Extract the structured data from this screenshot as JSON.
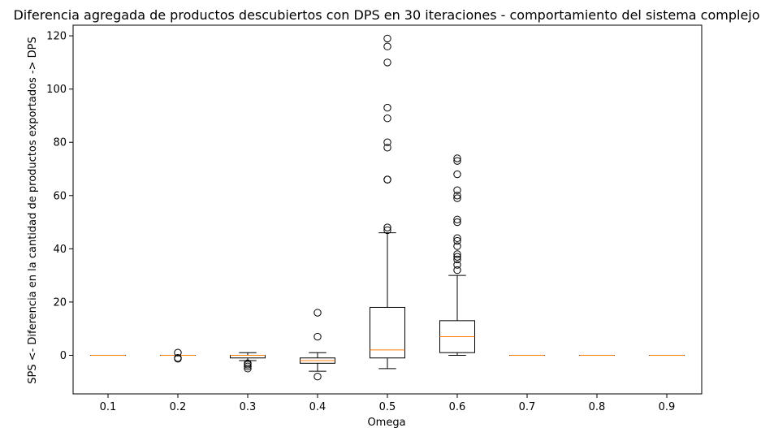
{
  "chart_data": {
    "type": "boxplot",
    "title": "Diferencia agregada de productos descubiertos con DPS en 30 iteraciones - comportamiento del sistema complejo",
    "xlabel": "Omega",
    "ylabel": "SPS <- Diferencia en la cantidad de productos exportados -> DPS",
    "ylim": [
      -14.5,
      124
    ],
    "yticks": [
      0,
      20,
      40,
      60,
      80,
      100,
      120
    ],
    "grid": false,
    "colors": {
      "box": "#000000",
      "median": "#ff7f0e",
      "background": "#ffffff"
    },
    "categories": [
      "0.1",
      "0.2",
      "0.3",
      "0.4",
      "0.5",
      "0.6",
      "0.7",
      "0.8",
      "0.9"
    ],
    "boxes": [
      {
        "category": "0.1",
        "whisker_low": 0,
        "q1": 0,
        "median": 0,
        "q3": 0,
        "whisker_high": 0,
        "fliers": []
      },
      {
        "category": "0.2",
        "whisker_low": 0,
        "q1": 0,
        "median": 0,
        "q3": 0,
        "whisker_high": 0,
        "fliers": [
          1,
          -1,
          -1.3
        ]
      },
      {
        "category": "0.3",
        "whisker_low": -2,
        "q1": -1,
        "median": 0,
        "q3": 0,
        "whisker_high": 1,
        "fliers": [
          -3,
          -3.5,
          -4.2,
          -5
        ]
      },
      {
        "category": "0.4",
        "whisker_low": -6,
        "q1": -3,
        "median": -2,
        "q3": -1,
        "whisker_high": 1,
        "fliers": [
          16,
          7,
          -8
        ]
      },
      {
        "category": "0.5",
        "whisker_low": -5,
        "q1": -1,
        "median": 2,
        "q3": 18,
        "whisker_high": 46,
        "fliers": [
          119,
          116,
          110,
          93,
          89,
          80,
          78,
          66,
          66,
          48,
          47
        ]
      },
      {
        "category": "0.6",
        "whisker_low": 0,
        "q1": 1,
        "median": 7,
        "q3": 13,
        "whisker_high": 30,
        "fliers": [
          74,
          73,
          68,
          62,
          60,
          59,
          51,
          50,
          44,
          43,
          41,
          38,
          37,
          36,
          34,
          32
        ]
      },
      {
        "category": "0.7",
        "whisker_low": 0,
        "q1": 0,
        "median": 0,
        "q3": 0,
        "whisker_high": 0,
        "fliers": []
      },
      {
        "category": "0.8",
        "whisker_low": 0,
        "q1": 0,
        "median": 0,
        "q3": 0,
        "whisker_high": 0,
        "fliers": []
      },
      {
        "category": "0.9",
        "whisker_low": 0,
        "q1": 0,
        "median": 0,
        "q3": 0,
        "whisker_high": 0,
        "fliers": []
      }
    ]
  }
}
